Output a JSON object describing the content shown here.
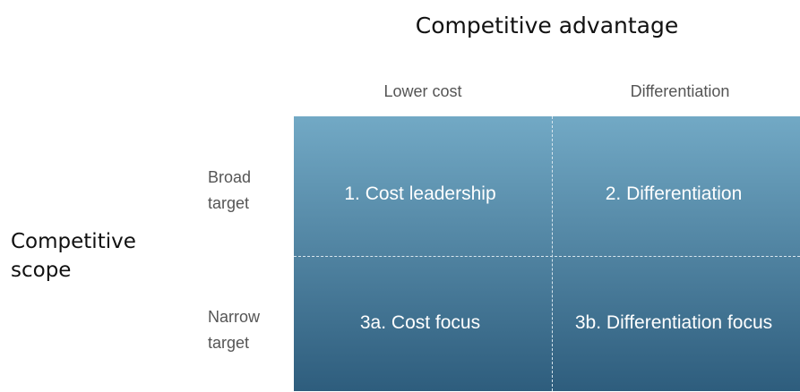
{
  "header": {
    "title": "Competitive advantage"
  },
  "columns": [
    "Lower cost",
    "Differentiation"
  ],
  "side_label": "Competitive scope",
  "rows": [
    {
      "label": "Broad target",
      "cells": [
        "1. Cost leadership",
        "2. Differentiation"
      ]
    },
    {
      "label": "Narrow target",
      "cells": [
        "3a. Cost focus",
        "3b. Differentiation focus"
      ]
    }
  ]
}
